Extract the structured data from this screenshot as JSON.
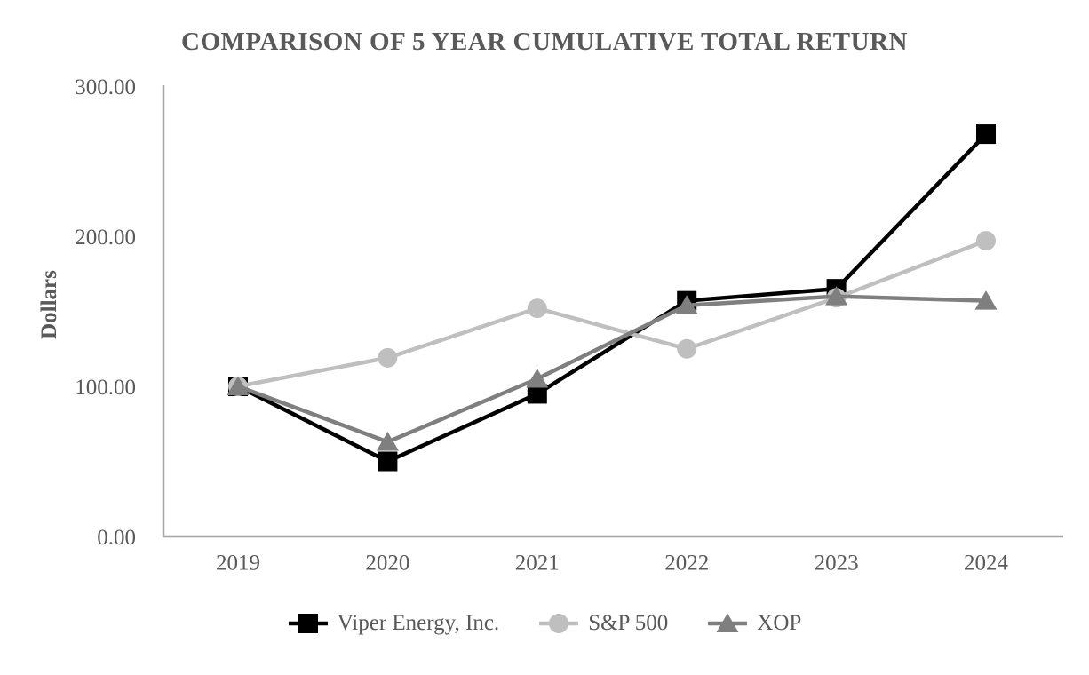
{
  "chart_data": {
    "type": "line",
    "title": "COMPARISON OF 5 YEAR CUMULATIVE TOTAL RETURN",
    "ylabel": "Dollars",
    "xlabel": "",
    "categories": [
      "2019",
      "2020",
      "2021",
      "2022",
      "2023",
      "2024"
    ],
    "series": [
      {
        "name": "Viper Energy, Inc.",
        "marker": "square",
        "color": "#000000",
        "values": [
          100,
          50,
          95,
          157,
          165,
          268
        ]
      },
      {
        "name": "S&P 500",
        "marker": "circle",
        "color": "#bfbfbf",
        "values": [
          100,
          119,
          152,
          125,
          159,
          197
        ]
      },
      {
        "name": "XOP",
        "marker": "triangle",
        "color": "#7f7f7f",
        "values": [
          100,
          63,
          105,
          154,
          160,
          157
        ]
      }
    ],
    "ylim": [
      0,
      300
    ],
    "yticks": [
      {
        "value": 0,
        "label": "0.00"
      },
      {
        "value": 100,
        "label": "100.00"
      },
      {
        "value": 200,
        "label": "200.00"
      },
      {
        "value": 300,
        "label": "300.00"
      }
    ],
    "grid": false,
    "legend_position": "bottom",
    "colors": {
      "axis_line": "#a6a6a6",
      "text": "#595959",
      "background": "#ffffff"
    }
  }
}
